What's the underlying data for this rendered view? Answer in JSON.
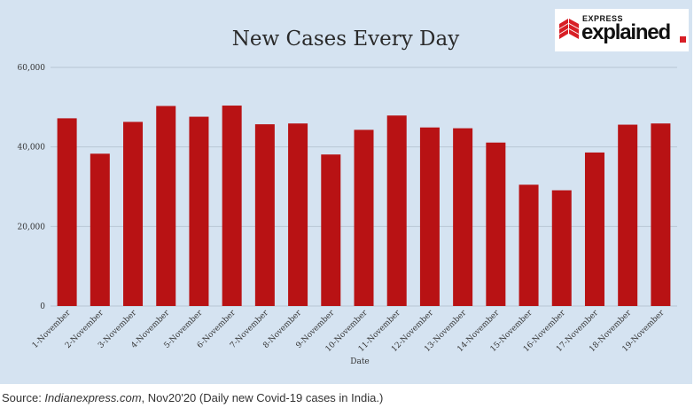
{
  "chart_data": {
    "type": "bar",
    "title": "New Cases Every Day",
    "xlabel": "Date",
    "ylabel": "",
    "ylim": [
      0,
      60000
    ],
    "yticks": [
      {
        "value": 0,
        "label": "0"
      },
      {
        "value": 20000,
        "label": "20,000"
      },
      {
        "value": 40000,
        "label": "40,000"
      },
      {
        "value": 60000,
        "label": "60,000"
      }
    ],
    "categories": [
      "1-November",
      "2-November",
      "3-November",
      "4-November",
      "5-November",
      "6-November",
      "7-November",
      "8-November",
      "9-November",
      "10-November",
      "11-November",
      "12-November",
      "13-November",
      "14-November",
      "15-November",
      "16-November",
      "17-November",
      "18-November",
      "19-November"
    ],
    "values": [
      47200,
      38300,
      46300,
      50300,
      47600,
      50400,
      45700,
      45900,
      38100,
      44300,
      47900,
      44900,
      44700,
      41100,
      30500,
      29100,
      38600,
      45600,
      45900
    ],
    "bar_color": "#b81214",
    "grid": true,
    "legend": "none"
  },
  "logo": {
    "small_text": "EXPRESS",
    "main_text": "explained",
    "accent": "#d81f26"
  },
  "caption": {
    "prefix": "Source: ",
    "source": "Indianexpress.com",
    "suffix": ", Nov20'20 (Daily new Covid-19 cases in India.)"
  }
}
